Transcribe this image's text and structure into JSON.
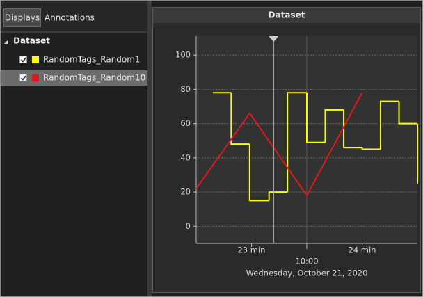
{
  "tabs": [
    "Displays",
    "Annotations"
  ],
  "chart_data": {
    "type": "line",
    "title": "Dataset",
    "x_label": "Wednesday, October 21, 2020",
    "xlim": [
      -60,
      60
    ],
    "xticks": [
      {
        "value": -30,
        "label": "23 min"
      },
      {
        "value": 0,
        "label": "10:00"
      },
      {
        "value": 30,
        "label": "24 min"
      }
    ],
    "ylim": [
      -10,
      111
    ],
    "yticks": [
      0,
      20,
      40,
      60,
      80,
      100
    ],
    "grid": true,
    "cursor_x": -18,
    "series": [
      {
        "name": "RandomTags_Random1",
        "color": "#ffff00",
        "checked": true,
        "step": true,
        "x": [
          -51,
          -41,
          -31,
          -20.5,
          -10.5,
          0,
          10,
          20,
          30,
          40,
          50,
          60
        ],
        "values": [
          78,
          48,
          15,
          20,
          78,
          49,
          68,
          46,
          45,
          73,
          60,
          25
        ]
      },
      {
        "name": "RandomTags_Random10",
        "color": "#e01818",
        "checked": true,
        "step": false,
        "x": [
          -60,
          -31,
          0,
          30
        ],
        "values": [
          22,
          66,
          18,
          78
        ]
      }
    ]
  }
}
